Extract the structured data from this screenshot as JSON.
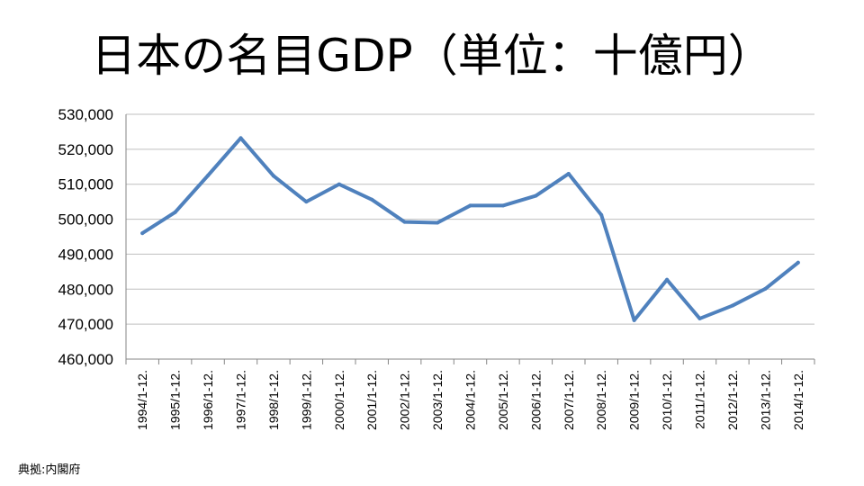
{
  "title": "日本の名目GDP（単位：十億円）",
  "source": "典拠:内閣府",
  "colors": {
    "line": "#4F81BD",
    "grid": "#BFBFBF",
    "axis": "#868686"
  },
  "chart_data": {
    "type": "line",
    "title": "日本の名目GDP（単位：十億円）",
    "xlabel": "",
    "ylabel": "",
    "ylim": [
      460000,
      530000
    ],
    "y_ticks": [
      "460,000",
      "470,000",
      "480,000",
      "490,000",
      "500,000",
      "510,000",
      "520,000",
      "530,000"
    ],
    "grid": true,
    "legend": "none",
    "categories": [
      "1994/1-12.",
      "1995/1-12.",
      "1996/1-12.",
      "1997/1-12.",
      "1998/1-12.",
      "1999/1-12.",
      "2000/1-12.",
      "2001/1-12.",
      "2002/1-12.",
      "2003/1-12.",
      "2004/1-12.",
      "2005/1-12.",
      "2006/1-12.",
      "2007/1-12.",
      "2008/1-12.",
      "2009/1-12.",
      "2010/1-12.",
      "2011/1-12.",
      "2012/1-12.",
      "2013/1-12.",
      "2014/1-12."
    ],
    "series": [
      {
        "values": [
          496000,
          502000,
          512500,
          523200,
          512400,
          505000,
          510000,
          505600,
          499200,
          499000,
          503900,
          503900,
          506700,
          513000,
          501200,
          471100,
          482700,
          471600,
          475300,
          480100,
          487600
        ]
      }
    ]
  }
}
